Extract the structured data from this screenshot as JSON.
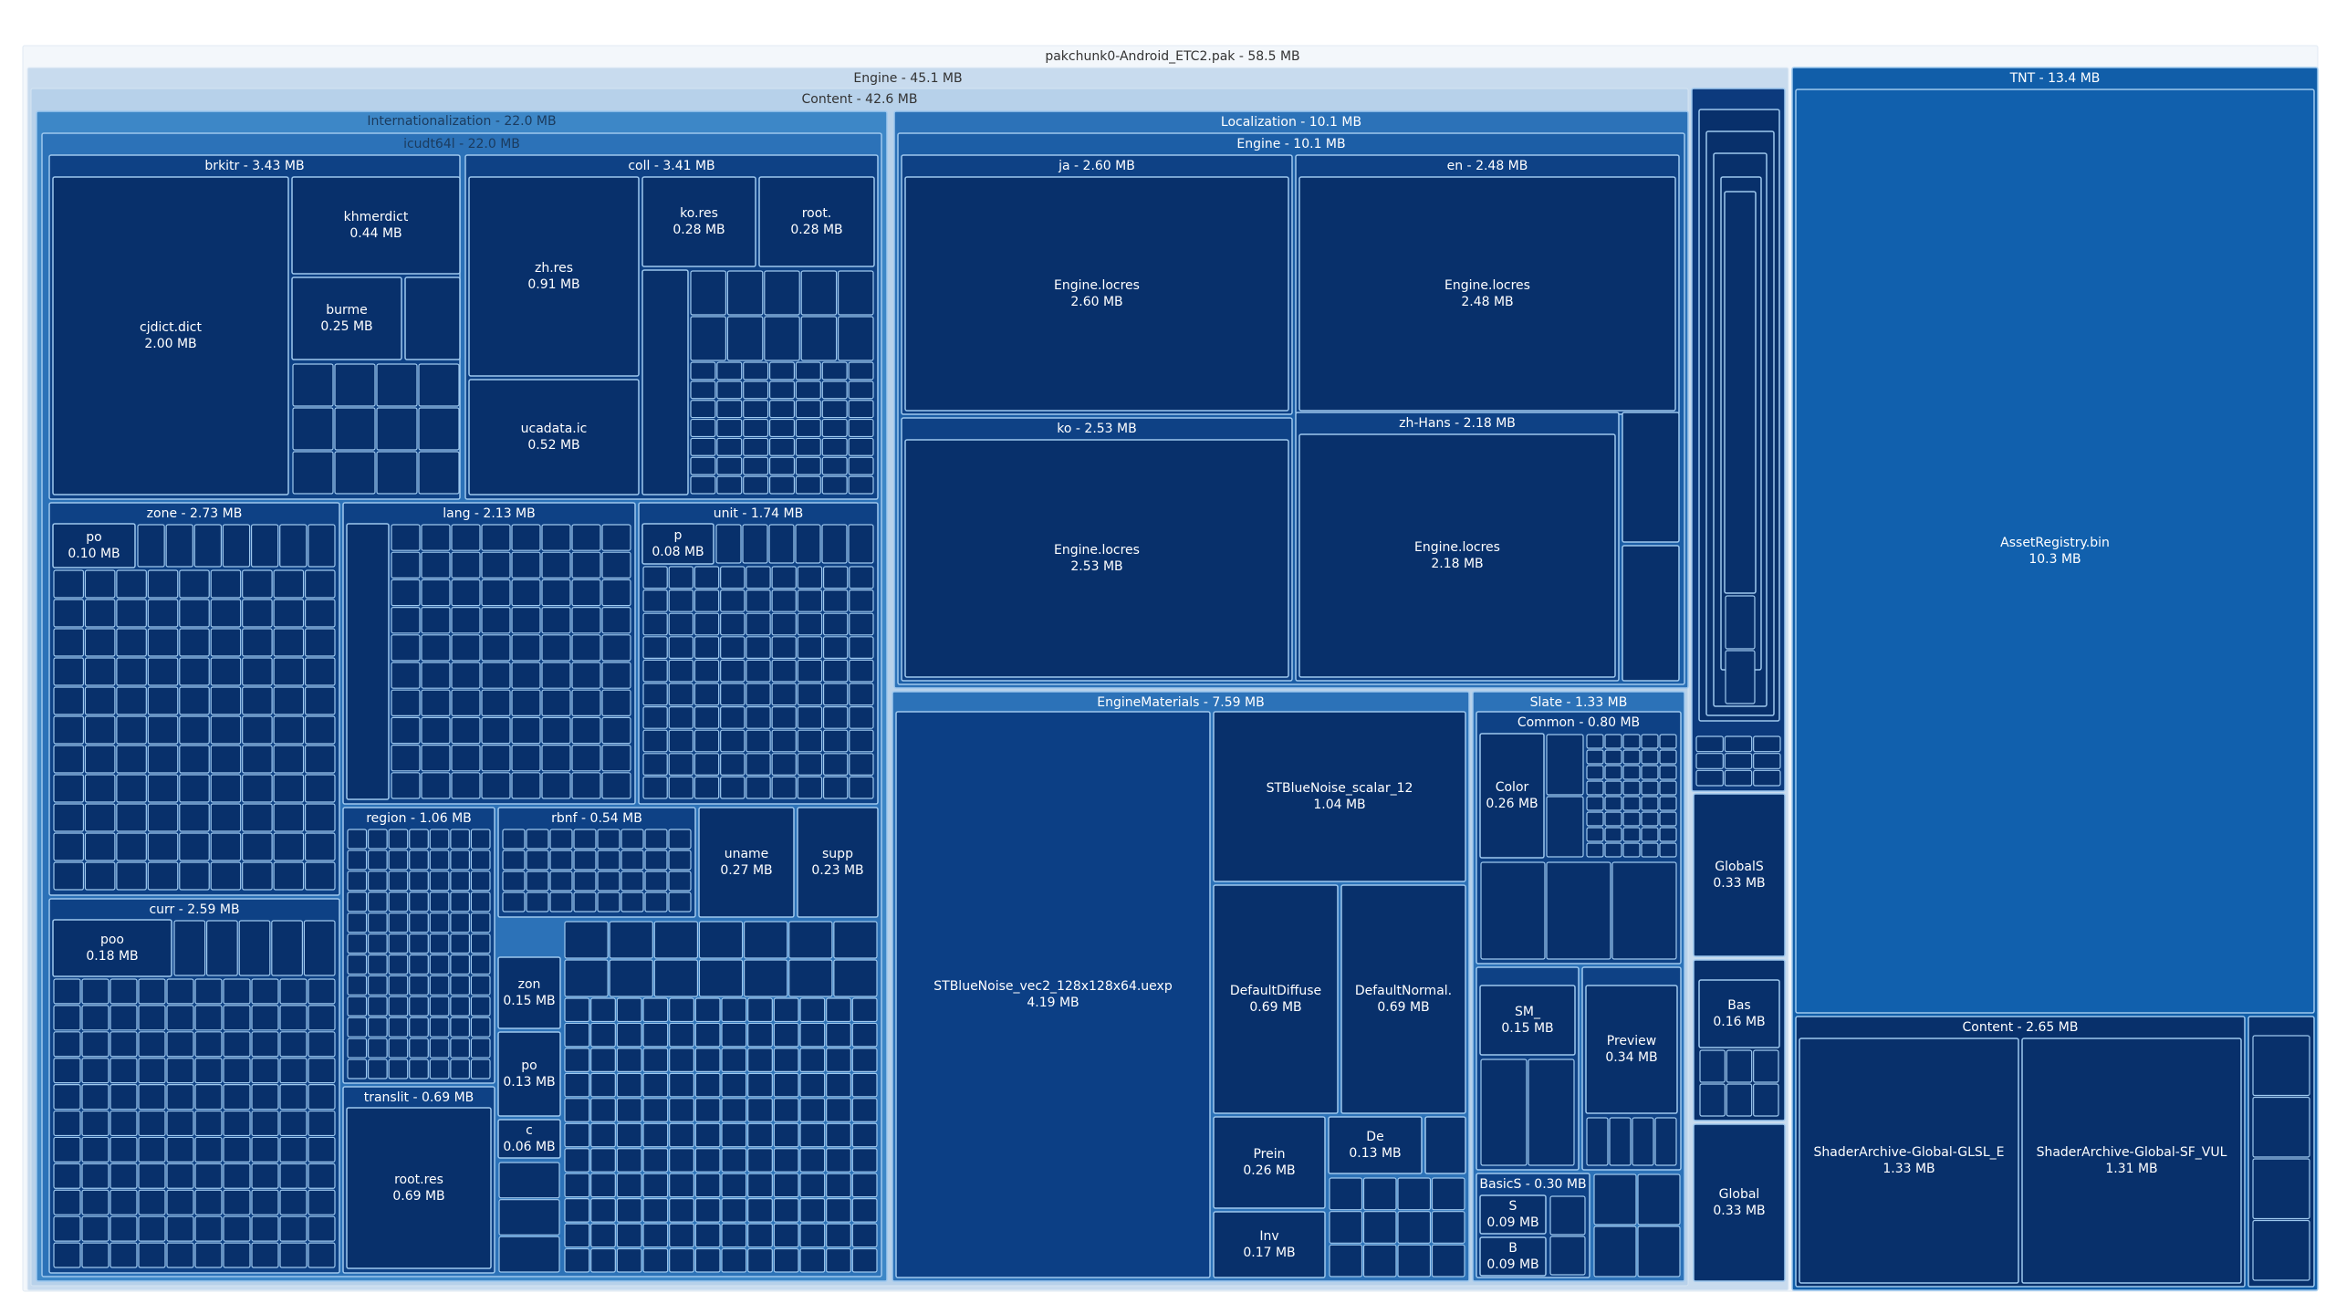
{
  "chart_data": {
    "type": "treemap",
    "title": "",
    "unit": "MB",
    "colors": {
      "root": "#f3f7fb",
      "level1_engine": "#c8dbee",
      "level2": "#b7d1ea",
      "level3": "#3d87c7",
      "level4": "#2c72b8",
      "deep": "#0a3a7a",
      "deeper": "#08306b",
      "tnt": "#115ea9",
      "border": "#9ec8ee",
      "text_dark": "#333333",
      "text_light": "#ffffff"
    },
    "root": {
      "label": "pakchunk0-Android_ETC2.pak - 58.5 MB",
      "name": "pakchunk0-Android_ETC2.pak",
      "size": 58.5,
      "children": [
        {
          "label": "Engine - 45.1 MB",
          "name": "Engine",
          "size": 45.1,
          "children": [
            {
              "label": "Content - 42.6 MB",
              "name": "Content",
              "size": 42.6,
              "children": [
                {
                  "label": "Internationalization - 22.0 MB",
                  "name": "Internationalization",
                  "size": 22.0,
                  "children": [
                    {
                      "label": "icudt64l - 22.0 MB",
                      "name": "icudt64l",
                      "size": 22.0,
                      "children": [
                        {
                          "label": "brkitr - 3.43 MB",
                          "name": "brkitr",
                          "size": 3.43,
                          "children": [
                            {
                              "name": "cjdict.dict",
                              "value": "2.00 MB",
                              "size": 2.0
                            },
                            {
                              "name": "khmerdict",
                              "value": "0.44 MB",
                              "size": 0.44
                            },
                            {
                              "name": "burme",
                              "value": "0.25 MB",
                              "size": 0.25
                            }
                          ]
                        },
                        {
                          "label": "coll - 3.41 MB",
                          "name": "coll",
                          "size": 3.41,
                          "children": [
                            {
                              "name": "zh.res",
                              "value": "0.91 MB",
                              "size": 0.91
                            },
                            {
                              "name": "ucadata.ic",
                              "value": "0.52 MB",
                              "size": 0.52
                            },
                            {
                              "name": "ko.res",
                              "value": "0.28 MB",
                              "size": 0.28
                            },
                            {
                              "name": "root.",
                              "value": "0.28 MB",
                              "size": 0.28
                            }
                          ]
                        },
                        {
                          "label": "zone - 2.73 MB",
                          "name": "zone",
                          "size": 2.73,
                          "children": [
                            {
                              "name": "po",
                              "value": "0.10 MB",
                              "size": 0.1
                            }
                          ]
                        },
                        {
                          "label": "lang - 2.13 MB",
                          "name": "lang",
                          "size": 2.13
                        },
                        {
                          "label": "unit - 1.74 MB",
                          "name": "unit",
                          "size": 1.74,
                          "children": [
                            {
                              "name": "p",
                              "value": "0.08 MB",
                              "size": 0.08
                            }
                          ]
                        },
                        {
                          "label": "curr - 2.59 MB",
                          "name": "curr",
                          "size": 2.59,
                          "children": [
                            {
                              "name": "poo",
                              "value": "0.18 MB",
                              "size": 0.18
                            }
                          ]
                        },
                        {
                          "label": "region - 1.06 MB",
                          "name": "region",
                          "size": 1.06
                        },
                        {
                          "label": "rbnf - 0.54 MB",
                          "name": "rbnf",
                          "size": 0.54
                        },
                        {
                          "name": "uname",
                          "value": "0.27 MB",
                          "size": 0.27
                        },
                        {
                          "name": "supp",
                          "value": "0.23 MB",
                          "size": 0.23
                        },
                        {
                          "label": "translit - 0.69 MB",
                          "name": "translit",
                          "size": 0.69,
                          "children": [
                            {
                              "name": "root.res",
                              "value": "0.69 MB",
                              "size": 0.69
                            }
                          ]
                        },
                        {
                          "name": "zon",
                          "value": "0.15 MB",
                          "size": 0.15
                        },
                        {
                          "name": "po",
                          "value": "0.13 MB",
                          "size": 0.13
                        },
                        {
                          "name": "c",
                          "value": "0.06 MB",
                          "size": 0.06
                        }
                      ]
                    }
                  ]
                },
                {
                  "label": "Localization - 10.1 MB",
                  "name": "Localization",
                  "size": 10.1,
                  "children": [
                    {
                      "label": "Engine - 10.1 MB",
                      "name": "Engine",
                      "size": 10.1,
                      "children": [
                        {
                          "label": "ja - 2.60 MB",
                          "name": "ja",
                          "size": 2.6,
                          "children": [
                            {
                              "name": "Engine.locres",
                              "value": "2.60 MB",
                              "size": 2.6
                            }
                          ]
                        },
                        {
                          "label": "en - 2.48 MB",
                          "name": "en",
                          "size": 2.48,
                          "children": [
                            {
                              "name": "Engine.locres",
                              "value": "2.48 MB",
                              "size": 2.48
                            }
                          ]
                        },
                        {
                          "label": "ko - 2.53 MB",
                          "name": "ko",
                          "size": 2.53,
                          "children": [
                            {
                              "name": "Engine.locres",
                              "value": "2.53 MB",
                              "size": 2.53
                            }
                          ]
                        },
                        {
                          "label": "zh-Hans - 2.18 MB",
                          "name": "zh-Hans",
                          "size": 2.18,
                          "children": [
                            {
                              "name": "Engine.locres",
                              "value": "2.18 MB",
                              "size": 2.18
                            }
                          ]
                        }
                      ]
                    }
                  ]
                },
                {
                  "label": "EngineMaterials - 7.59 MB",
                  "name": "EngineMaterials",
                  "size": 7.59,
                  "children": [
                    {
                      "name": "STBlueNoise_vec2_128x128x64.uexp",
                      "value": "4.19 MB",
                      "size": 4.19
                    },
                    {
                      "name": "STBlueNoise_scalar_12",
                      "value": "1.04 MB",
                      "size": 1.04
                    },
                    {
                      "name": "DefaultDiffuse",
                      "value": "0.69 MB",
                      "size": 0.69
                    },
                    {
                      "name": "DefaultNormal.",
                      "value": "0.69 MB",
                      "size": 0.69
                    },
                    {
                      "name": "Prein",
                      "value": "0.26 MB",
                      "size": 0.26
                    },
                    {
                      "name": "De",
                      "value": "0.13 MB",
                      "size": 0.13
                    },
                    {
                      "name": "Inv",
                      "value": "0.17 MB",
                      "size": 0.17
                    }
                  ]
                },
                {
                  "label": "Slate - 1.33 MB",
                  "name": "Slate",
                  "size": 1.33,
                  "children": [
                    {
                      "label": "Common - 0.80 MB",
                      "name": "Common",
                      "size": 0.8,
                      "children": [
                        {
                          "name": "Color",
                          "value": "0.26 MB",
                          "size": 0.26
                        }
                      ]
                    },
                    {
                      "name": "SM_",
                      "value": "0.15 MB",
                      "size": 0.15
                    },
                    {
                      "name": "Preview",
                      "value": "0.34 MB",
                      "size": 0.34
                    },
                    {
                      "label": "BasicS - 0.30 MB",
                      "name": "BasicS",
                      "size": 0.3,
                      "children": [
                        {
                          "name": "S",
                          "value": "0.09 MB",
                          "size": 0.09
                        },
                        {
                          "name": "B",
                          "value": "0.09 MB",
                          "size": 0.09
                        }
                      ]
                    }
                  ]
                }
              ]
            },
            {
              "name": "GlobalS",
              "value": "0.33 MB",
              "size": 0.33
            },
            {
              "name": "Bas",
              "value": "0.16 MB",
              "size": 0.16
            },
            {
              "name": "Global",
              "value": "0.33 MB",
              "size": 0.33
            }
          ]
        },
        {
          "label": "TNT - 13.4 MB",
          "name": "TNT",
          "size": 13.4,
          "children": [
            {
              "name": "AssetRegistry.bin",
              "value": "10.3 MB",
              "size": 10.3
            },
            {
              "label": "Content - 2.65 MB",
              "name": "Content",
              "size": 2.65,
              "children": [
                {
                  "name": "ShaderArchive-Global-GLSL_E",
                  "value": "1.33 MB",
                  "size": 1.33
                },
                {
                  "name": "ShaderArchive-Global-SF_VUL",
                  "value": "1.31 MB",
                  "size": 1.31
                }
              ]
            }
          ]
        }
      ]
    }
  }
}
